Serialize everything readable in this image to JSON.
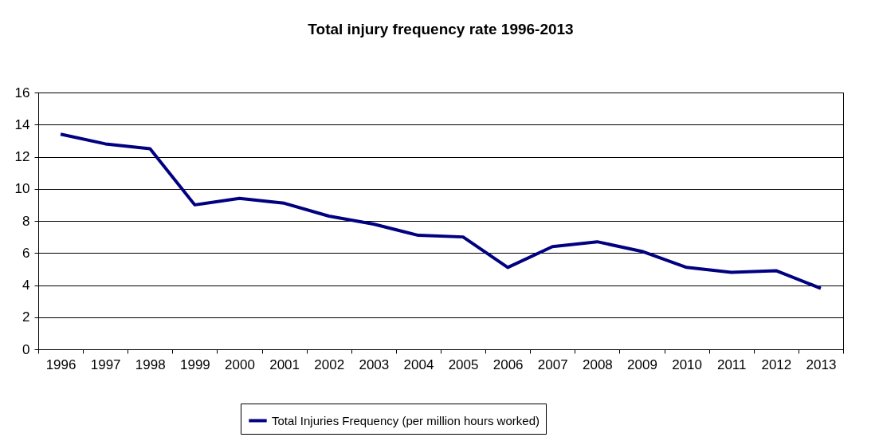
{
  "chart_data": {
    "type": "line",
    "title": "Total injury frequency rate 1996-2013",
    "categories": [
      "1996",
      "1997",
      "1998",
      "1999",
      "2000",
      "2001",
      "2002",
      "2003",
      "2004",
      "2005",
      "2006",
      "2007",
      "2008",
      "2009",
      "2010",
      "2011",
      "2012",
      "2013"
    ],
    "series": [
      {
        "name": "Total Injuries Frequency (per million hours worked)",
        "color": "#000080",
        "values": [
          13.4,
          12.8,
          12.5,
          9.0,
          9.4,
          9.1,
          8.3,
          7.8,
          7.1,
          7.0,
          5.1,
          6.4,
          6.7,
          6.1,
          5.1,
          4.8,
          4.9,
          3.8
        ]
      }
    ],
    "ylim": [
      0,
      16
    ],
    "yticks": [
      0,
      2,
      4,
      6,
      8,
      10,
      12,
      14,
      16
    ],
    "grid": "y",
    "legend": "bottom",
    "marker": "none",
    "line_style": "solid"
  }
}
